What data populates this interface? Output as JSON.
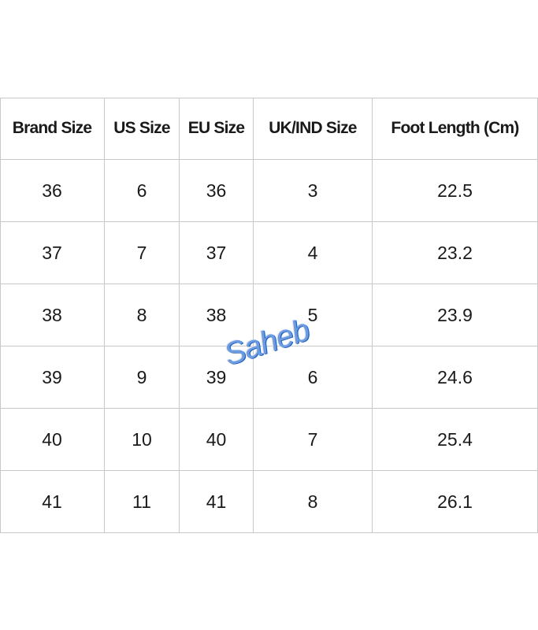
{
  "table": {
    "header": [
      "Brand Size",
      "US Size",
      "EU Size",
      "UK/IND Size",
      "Foot Length (Cm)"
    ],
    "rows": [
      [
        "36",
        "6",
        "36",
        "3",
        "22.5"
      ],
      [
        "37",
        "7",
        "37",
        "4",
        "23.2"
      ],
      [
        "38",
        "8",
        "38",
        "5",
        "23.9"
      ],
      [
        "39",
        "9",
        "39",
        "6",
        "24.6"
      ],
      [
        "40",
        "10",
        "40",
        "7",
        "25.4"
      ],
      [
        "41",
        "11",
        "41",
        "8",
        "26.1"
      ]
    ]
  },
  "watermark": "Saheb"
}
